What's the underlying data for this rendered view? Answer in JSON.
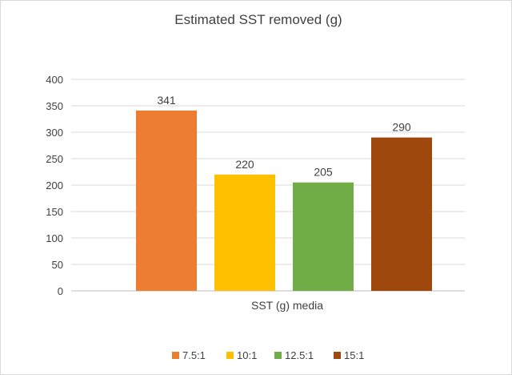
{
  "chart_data": {
    "type": "bar",
    "title": "Estimated SST removed (g)",
    "xlabel": "SST (g) media",
    "ylabel": "",
    "ylim": [
      0,
      400
    ],
    "yticks": [
      0,
      50,
      100,
      150,
      200,
      250,
      300,
      350,
      400
    ],
    "grid": true,
    "legend_position": "bottom",
    "series": [
      {
        "name": "7.5:1",
        "values": [
          341
        ],
        "color": "#ED7D31"
      },
      {
        "name": "10:1",
        "values": [
          220
        ],
        "color": "#FFC000"
      },
      {
        "name": "12.5:1",
        "values": [
          205
        ],
        "color": "#70AD47"
      },
      {
        "name": "15:1",
        "values": [
          290
        ],
        "color": "#9E480E"
      }
    ],
    "data_labels": [
      "341",
      "220",
      "205",
      "290"
    ]
  }
}
